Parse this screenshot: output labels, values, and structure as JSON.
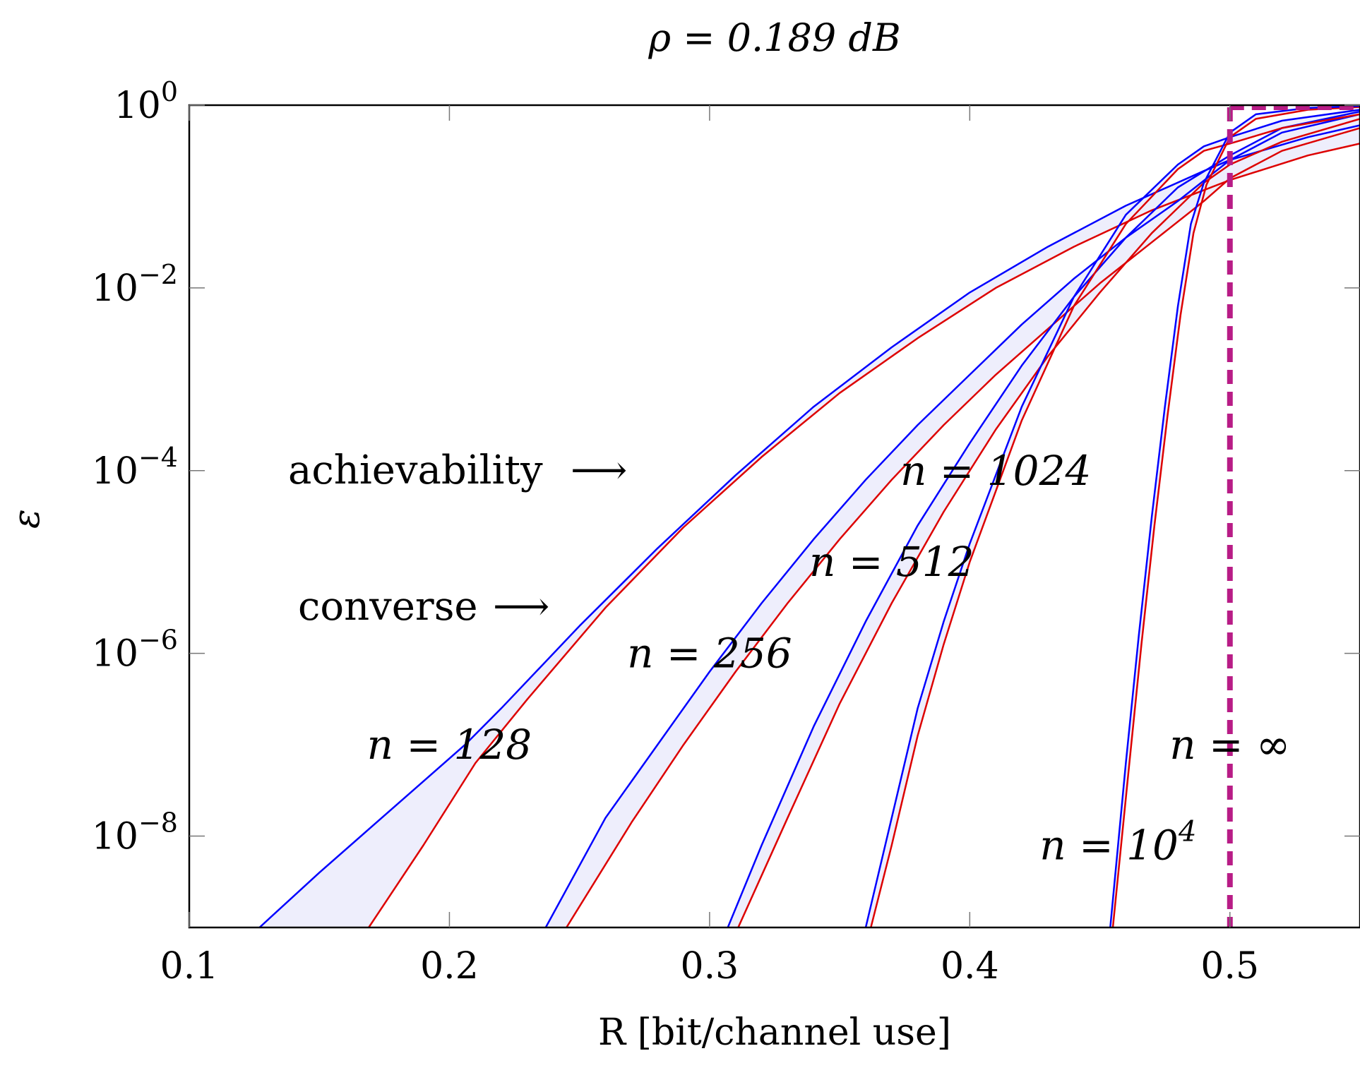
{
  "chart_data": {
    "type": "line",
    "title": "ρ = 0.189 dB",
    "xlabel": "R [bit/channel use]",
    "ylabel": "ε",
    "xlim": [
      0.1,
      0.55
    ],
    "ylim_log10": [
      -9,
      0
    ],
    "yscale": "log",
    "x_ticks": [
      0.1,
      0.2,
      0.3,
      0.4,
      0.5
    ],
    "x_tick_labels": [
      "0.1",
      "0.2",
      "0.3",
      "0.4",
      "0.5"
    ],
    "y_ticks_log10": [
      0,
      -2,
      -4,
      -6,
      -8
    ],
    "y_tick_base": "10",
    "y_tick_exponents": [
      "0",
      "−2",
      "−4",
      "−6",
      "−8"
    ],
    "grid": false,
    "colors": {
      "achievability": "#0000ff",
      "converse": "#dd0000",
      "band_fill": "#eeeefc",
      "capacity": "#b81c86"
    },
    "legend": {
      "achievability": "achievability",
      "converse": "converse",
      "arrow": "⟶"
    },
    "capacity_line": {
      "x": 0.5,
      "style": "dashed"
    },
    "curve_labels": [
      {
        "text": "n = 128",
        "x": 0.2,
        "log10_y": -7.0
      },
      {
        "text": "n = 256",
        "x": 0.3,
        "log10_y": -6.0
      },
      {
        "text": "n = 512",
        "x": 0.37,
        "log10_y": -5.0
      },
      {
        "text": "n = 1024",
        "x": 0.41,
        "log10_y": -4.0
      },
      {
        "text": "n = ∞",
        "x": 0.5,
        "log10_y": -7.0
      },
      {
        "text": "n = 10",
        "sup": "4",
        "x": 0.457,
        "log10_y": -8.1
      }
    ],
    "series": [
      {
        "n": "128",
        "achievability": {
          "x": [
            0.127,
            0.15,
            0.17,
            0.19,
            0.206,
            0.22,
            0.25,
            0.28,
            0.31,
            0.34,
            0.37,
            0.4,
            0.43,
            0.46,
            0.49,
            0.5,
            0.53,
            0.55
          ],
          "log10_y": [
            -9.0,
            -8.4,
            -7.9,
            -7.4,
            -7.0,
            -6.6,
            -5.7,
            -4.85,
            -4.05,
            -3.3,
            -2.65,
            -2.05,
            -1.55,
            -1.1,
            -0.72,
            -0.6,
            -0.35,
            -0.22
          ]
        },
        "converse": {
          "x": [
            0.169,
            0.19,
            0.21,
            0.23,
            0.26,
            0.29,
            0.32,
            0.35,
            0.38,
            0.41,
            0.44,
            0.47,
            0.5,
            0.53,
            0.55
          ],
          "log10_y": [
            -9.0,
            -8.1,
            -7.2,
            -6.5,
            -5.5,
            -4.62,
            -3.85,
            -3.15,
            -2.55,
            -2.0,
            -1.55,
            -1.15,
            -0.82,
            -0.55,
            -0.42
          ]
        }
      },
      {
        "n": "256",
        "achievability": {
          "x": [
            0.237,
            0.26,
            0.28,
            0.3,
            0.32,
            0.34,
            0.36,
            0.38,
            0.4,
            0.42,
            0.44,
            0.46,
            0.48,
            0.5,
            0.52,
            0.55
          ],
          "log10_y": [
            -9.0,
            -7.8,
            -7.0,
            -6.2,
            -5.45,
            -4.75,
            -4.1,
            -3.5,
            -2.95,
            -2.4,
            -1.9,
            -1.45,
            -1.05,
            -0.6,
            -0.3,
            -0.1
          ]
        },
        "converse": {
          "x": [
            0.245,
            0.27,
            0.29,
            0.31,
            0.33,
            0.35,
            0.37,
            0.39,
            0.41,
            0.43,
            0.45,
            0.47,
            0.49,
            0.5,
            0.52,
            0.55
          ],
          "log10_y": [
            -9.0,
            -7.85,
            -7.0,
            -6.2,
            -5.45,
            -4.75,
            -4.1,
            -3.5,
            -2.95,
            -2.45,
            -1.95,
            -1.5,
            -1.05,
            -0.8,
            -0.5,
            -0.25
          ]
        }
      },
      {
        "n": "512",
        "achievability": {
          "x": [
            0.307,
            0.32,
            0.34,
            0.36,
            0.38,
            0.4,
            0.42,
            0.44,
            0.46,
            0.48,
            0.5,
            0.52,
            0.55
          ],
          "log10_y": [
            -9.0,
            -8.1,
            -6.8,
            -5.65,
            -4.6,
            -3.7,
            -2.85,
            -2.1,
            -1.45,
            -0.9,
            -0.55,
            -0.25,
            -0.07
          ]
        },
        "converse": {
          "x": [
            0.311,
            0.33,
            0.35,
            0.37,
            0.39,
            0.41,
            0.43,
            0.45,
            0.47,
            0.49,
            0.5,
            0.52,
            0.55
          ],
          "log10_y": [
            -9.0,
            -7.8,
            -6.55,
            -5.45,
            -4.45,
            -3.55,
            -2.75,
            -2.05,
            -1.4,
            -0.85,
            -0.65,
            -0.4,
            -0.15
          ]
        }
      },
      {
        "n": "1024",
        "achievability": {
          "x": [
            0.36,
            0.37,
            0.38,
            0.39,
            0.4,
            0.42,
            0.44,
            0.46,
            0.48,
            0.49,
            0.5,
            0.52,
            0.55
          ],
          "log10_y": [
            -9.0,
            -7.8,
            -6.6,
            -5.65,
            -4.8,
            -3.3,
            -2.1,
            -1.2,
            -0.65,
            -0.45,
            -0.35,
            -0.17,
            -0.05
          ]
        },
        "converse": {
          "x": [
            0.362,
            0.37,
            0.38,
            0.39,
            0.4,
            0.42,
            0.44,
            0.46,
            0.48,
            0.49,
            0.5,
            0.52,
            0.55
          ],
          "log10_y": [
            -9.0,
            -8.1,
            -6.9,
            -5.9,
            -5.0,
            -3.45,
            -2.2,
            -1.3,
            -0.7,
            -0.5,
            -0.42,
            -0.25,
            -0.1
          ]
        }
      },
      {
        "n": "10^4",
        "achievability": {
          "x": [
            0.454,
            0.46,
            0.465,
            0.47,
            0.475,
            0.48,
            0.485,
            0.49,
            0.5,
            0.51,
            0.53,
            0.55
          ],
          "log10_y": [
            -9.0,
            -7.2,
            -5.8,
            -4.5,
            -3.3,
            -2.2,
            -1.3,
            -0.85,
            -0.3,
            -0.1,
            -0.03,
            -0.01
          ]
        },
        "converse": {
          "x": [
            0.455,
            0.461,
            0.466,
            0.471,
            0.476,
            0.481,
            0.486,
            0.491,
            0.5,
            0.51,
            0.53,
            0.55
          ],
          "log10_y": [
            -9.0,
            -7.3,
            -5.9,
            -4.6,
            -3.4,
            -2.3,
            -1.4,
            -0.87,
            -0.35,
            -0.15,
            -0.05,
            -0.02
          ]
        }
      }
    ]
  }
}
